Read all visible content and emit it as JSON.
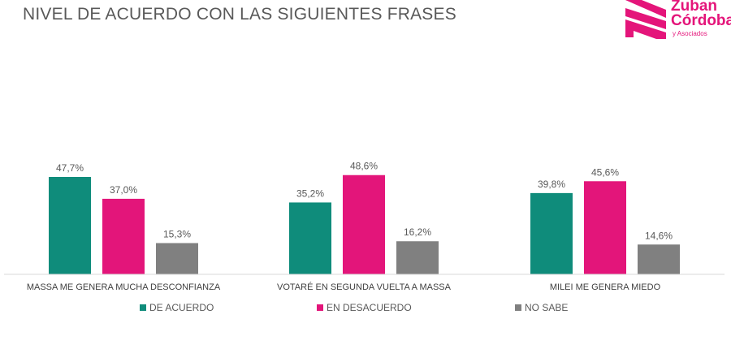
{
  "title": "NIVEL DE ACUERDO CON LAS SIGUIENTES FRASES",
  "logo": {
    "line1": "Zuban",
    "line2": "Córdoba",
    "line3": "y Asociados"
  },
  "chart_data": {
    "type": "bar",
    "title": "NIVEL DE ACUERDO CON LAS SIGUIENTES FRASES",
    "categories": [
      "MASSA ME GENERA MUCHA DESCONFIANZA",
      "VOTARÉ EN SEGUNDA VUELTA A MASSA",
      "MILEI ME GENERA MIEDO"
    ],
    "series": [
      {
        "name": "DE ACUERDO",
        "color": "#0f8c7b",
        "values": [
          47.7,
          35.2,
          39.8
        ],
        "labels": [
          "47,7%",
          "35,2%",
          "39,8%"
        ]
      },
      {
        "name": "EN DESACUERDO",
        "color": "#e3157a",
        "values": [
          37.0,
          48.6,
          45.6
        ],
        "labels": [
          "37,0%",
          "48,6%",
          "45,6%"
        ]
      },
      {
        "name": "NO SABE",
        "color": "#808080",
        "values": [
          15.3,
          16.2,
          14.6
        ],
        "labels": [
          "15,3%",
          "16,2%",
          "14,6%"
        ]
      }
    ],
    "ylim": [
      0,
      60
    ],
    "grid": false,
    "legend": "bottom",
    "xlabel": "",
    "ylabel": ""
  }
}
